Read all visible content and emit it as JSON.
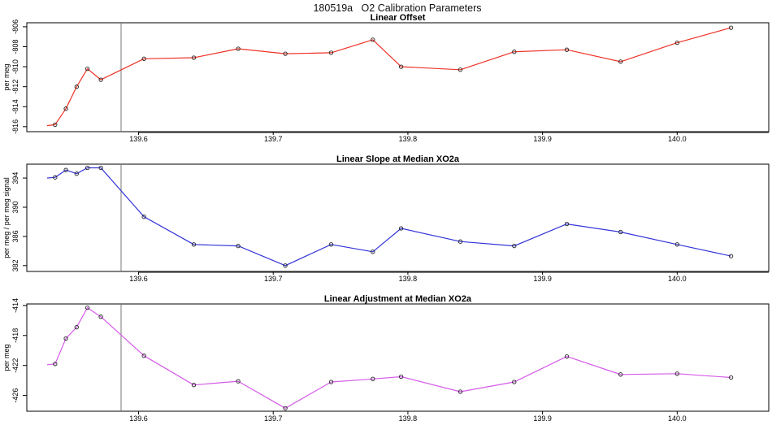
{
  "title": "180519a   O2 Calibration Parameters",
  "colors": {
    "red_series": "#ee3328",
    "blue_series": "#3535d8",
    "magenta_series": "#d55ce8",
    "marker_stroke": "#222222",
    "axis": "#000000",
    "axis_heavy": "#3a3a3a",
    "ref_line": "#777777",
    "background": "#ffffff"
  },
  "chart_data": [
    {
      "type": "line",
      "title": "Linear Offset",
      "ylabel": "per meg",
      "series_color_key": "red_series",
      "marker": "open-circle",
      "grid": false,
      "legend": null,
      "first_point_no_marker": true,
      "xlim": [
        139.517,
        140.068
      ],
      "ylim": [
        -816.5,
        -805.6
      ],
      "xticks": [
        139.6,
        139.7,
        139.8,
        139.9,
        140.0
      ],
      "xtick_labels": [
        "139.6",
        "139.7",
        "139.8",
        "139.9",
        "140.0"
      ],
      "yticks": [
        -816,
        -814,
        -812,
        -810,
        -808,
        -806
      ],
      "ytick_labels": [
        "-816",
        "-814",
        "-812",
        "-810",
        "-808",
        "-806"
      ],
      "ref_line_x": 139.587,
      "x": [
        139.532,
        139.538,
        139.546,
        139.554,
        139.562,
        139.572,
        139.604,
        139.641,
        139.674,
        139.709,
        139.743,
        139.774,
        139.795,
        139.839,
        139.879,
        139.918,
        139.958,
        140.0,
        140.04
      ],
      "values": [
        -815.9,
        -815.8,
        -814.2,
        -812.0,
        -810.2,
        -811.3,
        -809.2,
        -809.1,
        -808.2,
        -808.7,
        -808.6,
        -807.3,
        -810.0,
        -810.3,
        -808.5,
        -808.3,
        -809.5,
        -807.6,
        -806.1
      ]
    },
    {
      "type": "line",
      "title": "Linear Slope at Median XO2a",
      "ylabel": "per meg / per meg signal",
      "series_color_key": "blue_series",
      "marker": "open-circle",
      "grid": false,
      "legend": null,
      "first_point_no_marker": true,
      "xlim": [
        139.517,
        140.068
      ],
      "ylim": [
        381.2,
        395.9
      ],
      "xticks": [
        139.6,
        139.7,
        139.8,
        139.9,
        140.0
      ],
      "xtick_labels": [
        "139.6",
        "139.7",
        "139.8",
        "139.9",
        "140.0"
      ],
      "yticks": [
        382,
        386,
        390,
        394
      ],
      "ytick_labels": [
        "382",
        "386",
        "390",
        "394"
      ],
      "ref_line_x": 139.587,
      "x": [
        139.532,
        139.538,
        139.546,
        139.554,
        139.562,
        139.572,
        139.604,
        139.641,
        139.674,
        139.709,
        139.743,
        139.774,
        139.795,
        139.839,
        139.879,
        139.918,
        139.958,
        140.0,
        140.04
      ],
      "values": [
        394.0,
        394.1,
        395.1,
        394.6,
        395.4,
        395.4,
        388.7,
        384.9,
        384.7,
        382.0,
        384.9,
        383.9,
        387.1,
        385.3,
        384.7,
        387.7,
        386.6,
        384.9,
        383.3
      ]
    },
    {
      "type": "line",
      "title": "Linear Adjustment at Median XO2a",
      "ylabel": "per meg",
      "series_color_key": "magenta_series",
      "marker": "open-circle",
      "grid": false,
      "legend": null,
      "first_point_no_marker": true,
      "xlim": [
        139.517,
        140.068
      ],
      "ylim": [
        -428.1,
        -413.8
      ],
      "xticks": [
        139.6,
        139.7,
        139.8,
        139.9,
        140.0
      ],
      "xtick_labels": [
        "139.6",
        "139.7",
        "139.8",
        "139.9",
        "140.0"
      ],
      "yticks": [
        -426,
        -422,
        -418,
        -414
      ],
      "ytick_labels": [
        "-426",
        "-422",
        "-418",
        "-414"
      ],
      "ref_line_x": 139.587,
      "x": [
        139.532,
        139.538,
        139.546,
        139.554,
        139.562,
        139.572,
        139.604,
        139.641,
        139.674,
        139.709,
        139.743,
        139.774,
        139.795,
        139.839,
        139.879,
        139.918,
        139.958,
        140.0,
        140.04
      ],
      "values": [
        -421.9,
        -421.8,
        -418.4,
        -416.9,
        -414.3,
        -415.5,
        -420.7,
        -424.6,
        -424.1,
        -427.7,
        -424.2,
        -423.8,
        -423.5,
        -425.5,
        -424.2,
        -420.8,
        -423.2,
        -423.1,
        -423.6
      ]
    }
  ]
}
